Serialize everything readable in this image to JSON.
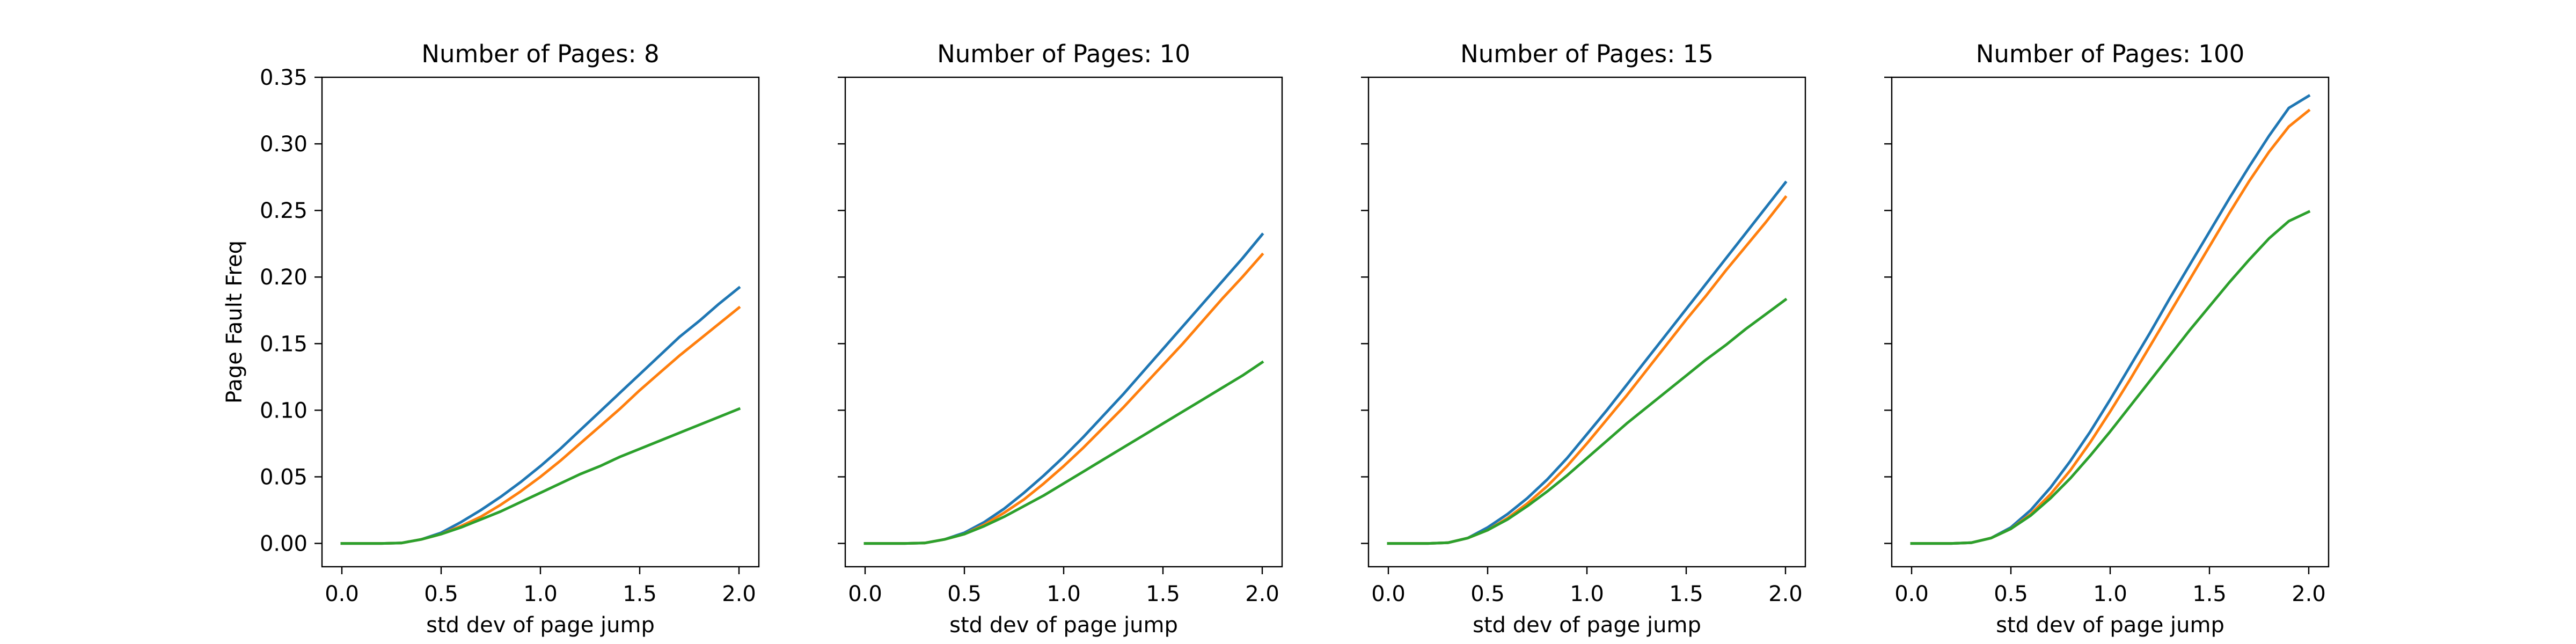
{
  "figure": {
    "background": "#ffffff"
  },
  "chart_data": [
    {
      "type": "line",
      "title": "Number of Pages: 8",
      "xlabel": "std dev of page jump",
      "ylabel": "Page Fault Freq",
      "xlim": [
        -0.1,
        2.1
      ],
      "ylim": [
        -0.0175,
        0.35
      ],
      "xticks": [
        0.0,
        0.5,
        1.0,
        1.5,
        2.0
      ],
      "xtick_labels": [
        "0.0",
        "0.5",
        "1.0",
        "1.5",
        "2.0"
      ],
      "yticks": [
        0.0,
        0.05,
        0.1,
        0.15,
        0.2,
        0.25,
        0.3,
        0.35
      ],
      "ytick_labels": [
        "0.00",
        "0.05",
        "0.10",
        "0.15",
        "0.20",
        "0.25",
        "0.30",
        "0.35"
      ],
      "show_ytick_labels": true,
      "grid": false,
      "x": [
        0.0,
        0.1,
        0.2,
        0.3,
        0.4,
        0.5,
        0.6,
        0.7,
        0.8,
        0.9,
        1.0,
        1.1,
        1.2,
        1.3,
        1.4,
        1.5,
        1.6,
        1.7,
        1.8,
        1.9,
        2.0
      ],
      "series": [
        {
          "color": "#1f77b4",
          "values": [
            0.0,
            0.0,
            0.0,
            0.0003,
            0.003,
            0.008,
            0.016,
            0.025,
            0.035,
            0.046,
            0.058,
            0.071,
            0.085,
            0.099,
            0.113,
            0.127,
            0.141,
            0.155,
            0.167,
            0.18,
            0.192
          ]
        },
        {
          "color": "#ff7f0e",
          "values": [
            0.0,
            0.0,
            0.0,
            0.0003,
            0.003,
            0.007,
            0.013,
            0.02,
            0.029,
            0.039,
            0.05,
            0.062,
            0.075,
            0.088,
            0.101,
            0.115,
            0.128,
            0.141,
            0.153,
            0.165,
            0.177
          ]
        },
        {
          "color": "#2ca02c",
          "values": [
            0.0,
            0.0,
            0.0,
            0.0003,
            0.003,
            0.007,
            0.012,
            0.018,
            0.024,
            0.031,
            0.038,
            0.045,
            0.052,
            0.058,
            0.065,
            0.071,
            0.077,
            0.083,
            0.089,
            0.095,
            0.101
          ]
        }
      ]
    },
    {
      "type": "line",
      "title": "Number of Pages: 10",
      "xlabel": "std dev of page jump",
      "ylabel": "",
      "xlim": [
        -0.1,
        2.1
      ],
      "ylim": [
        -0.0175,
        0.35
      ],
      "xticks": [
        0.0,
        0.5,
        1.0,
        1.5,
        2.0
      ],
      "xtick_labels": [
        "0.0",
        "0.5",
        "1.0",
        "1.5",
        "2.0"
      ],
      "yticks": [
        0.0,
        0.05,
        0.1,
        0.15,
        0.2,
        0.25,
        0.3,
        0.35
      ],
      "ytick_labels": [
        "0.00",
        "0.05",
        "0.10",
        "0.15",
        "0.20",
        "0.25",
        "0.30",
        "0.35"
      ],
      "show_ytick_labels": false,
      "grid": false,
      "x": [
        0.0,
        0.1,
        0.2,
        0.3,
        0.4,
        0.5,
        0.6,
        0.7,
        0.8,
        0.9,
        1.0,
        1.1,
        1.2,
        1.3,
        1.4,
        1.5,
        1.6,
        1.7,
        1.8,
        1.9,
        2.0
      ],
      "series": [
        {
          "color": "#1f77b4",
          "values": [
            0.0,
            0.0,
            0.0,
            0.0003,
            0.003,
            0.008,
            0.016,
            0.026,
            0.038,
            0.051,
            0.065,
            0.08,
            0.096,
            0.112,
            0.129,
            0.146,
            0.163,
            0.18,
            0.197,
            0.214,
            0.232
          ]
        },
        {
          "color": "#ff7f0e",
          "values": [
            0.0,
            0.0,
            0.0,
            0.0003,
            0.003,
            0.007,
            0.014,
            0.023,
            0.033,
            0.045,
            0.058,
            0.072,
            0.087,
            0.102,
            0.118,
            0.134,
            0.15,
            0.167,
            0.184,
            0.2,
            0.217
          ]
        },
        {
          "color": "#2ca02c",
          "values": [
            0.0,
            0.0,
            0.0,
            0.0003,
            0.003,
            0.007,
            0.013,
            0.02,
            0.028,
            0.036,
            0.045,
            0.054,
            0.063,
            0.072,
            0.081,
            0.09,
            0.099,
            0.108,
            0.117,
            0.126,
            0.136
          ]
        }
      ]
    },
    {
      "type": "line",
      "title": "Number of Pages: 15",
      "xlabel": "std dev of page jump",
      "ylabel": "",
      "xlim": [
        -0.1,
        2.1
      ],
      "ylim": [
        -0.0175,
        0.35
      ],
      "xticks": [
        0.0,
        0.5,
        1.0,
        1.5,
        2.0
      ],
      "xtick_labels": [
        "0.0",
        "0.5",
        "1.0",
        "1.5",
        "2.0"
      ],
      "yticks": [
        0.0,
        0.05,
        0.1,
        0.15,
        0.2,
        0.25,
        0.3,
        0.35
      ],
      "ytick_labels": [
        "0.00",
        "0.05",
        "0.10",
        "0.15",
        "0.20",
        "0.25",
        "0.30",
        "0.35"
      ],
      "show_ytick_labels": false,
      "grid": false,
      "x": [
        0.0,
        0.1,
        0.2,
        0.3,
        0.4,
        0.5,
        0.6,
        0.7,
        0.8,
        0.9,
        1.0,
        1.1,
        1.2,
        1.3,
        1.4,
        1.5,
        1.6,
        1.7,
        1.8,
        1.9,
        2.0
      ],
      "series": [
        {
          "color": "#1f77b4",
          "values": [
            0.0,
            0.0,
            0.0,
            0.0005,
            0.004,
            0.012,
            0.022,
            0.034,
            0.048,
            0.064,
            0.082,
            0.1,
            0.119,
            0.138,
            0.157,
            0.176,
            0.195,
            0.214,
            0.233,
            0.252,
            0.271
          ]
        },
        {
          "color": "#ff7f0e",
          "values": [
            0.0,
            0.0,
            0.0,
            0.0005,
            0.004,
            0.01,
            0.019,
            0.03,
            0.043,
            0.058,
            0.075,
            0.093,
            0.111,
            0.13,
            0.149,
            0.168,
            0.186,
            0.205,
            0.223,
            0.241,
            0.26
          ]
        },
        {
          "color": "#2ca02c",
          "values": [
            0.0,
            0.0,
            0.0,
            0.0005,
            0.004,
            0.01,
            0.018,
            0.028,
            0.039,
            0.051,
            0.064,
            0.077,
            0.09,
            0.102,
            0.114,
            0.126,
            0.138,
            0.149,
            0.161,
            0.172,
            0.183
          ]
        }
      ]
    },
    {
      "type": "line",
      "title": "Number of Pages: 100",
      "xlabel": "std dev of page jump",
      "ylabel": "",
      "xlim": [
        -0.1,
        2.1
      ],
      "ylim": [
        -0.0175,
        0.35
      ],
      "xticks": [
        0.0,
        0.5,
        1.0,
        1.5,
        2.0
      ],
      "xtick_labels": [
        "0.0",
        "0.5",
        "1.0",
        "1.5",
        "2.0"
      ],
      "yticks": [
        0.0,
        0.05,
        0.1,
        0.15,
        0.2,
        0.25,
        0.3,
        0.35
      ],
      "ytick_labels": [
        "0.00",
        "0.05",
        "0.10",
        "0.15",
        "0.20",
        "0.25",
        "0.30",
        "0.35"
      ],
      "show_ytick_labels": false,
      "grid": false,
      "x": [
        0.0,
        0.1,
        0.2,
        0.3,
        0.4,
        0.5,
        0.6,
        0.7,
        0.8,
        0.9,
        1.0,
        1.1,
        1.2,
        1.3,
        1.4,
        1.5,
        1.6,
        1.7,
        1.8,
        1.9,
        2.0
      ],
      "series": [
        {
          "color": "#1f77b4",
          "values": [
            0.0,
            0.0,
            0.0,
            0.0005,
            0.004,
            0.012,
            0.025,
            0.042,
            0.062,
            0.084,
            0.108,
            0.133,
            0.158,
            0.184,
            0.209,
            0.234,
            0.259,
            0.283,
            0.306,
            0.327,
            0.336
          ]
        },
        {
          "color": "#ff7f0e",
          "values": [
            0.0,
            0.0,
            0.0,
            0.0005,
            0.004,
            0.011,
            0.022,
            0.037,
            0.055,
            0.076,
            0.099,
            0.123,
            0.148,
            0.173,
            0.198,
            0.223,
            0.248,
            0.272,
            0.294,
            0.313,
            0.325
          ]
        },
        {
          "color": "#2ca02c",
          "values": [
            0.0,
            0.0,
            0.0,
            0.0005,
            0.004,
            0.011,
            0.021,
            0.034,
            0.049,
            0.066,
            0.084,
            0.103,
            0.122,
            0.141,
            0.16,
            0.178,
            0.196,
            0.213,
            0.229,
            0.242,
            0.249
          ]
        }
      ]
    }
  ]
}
